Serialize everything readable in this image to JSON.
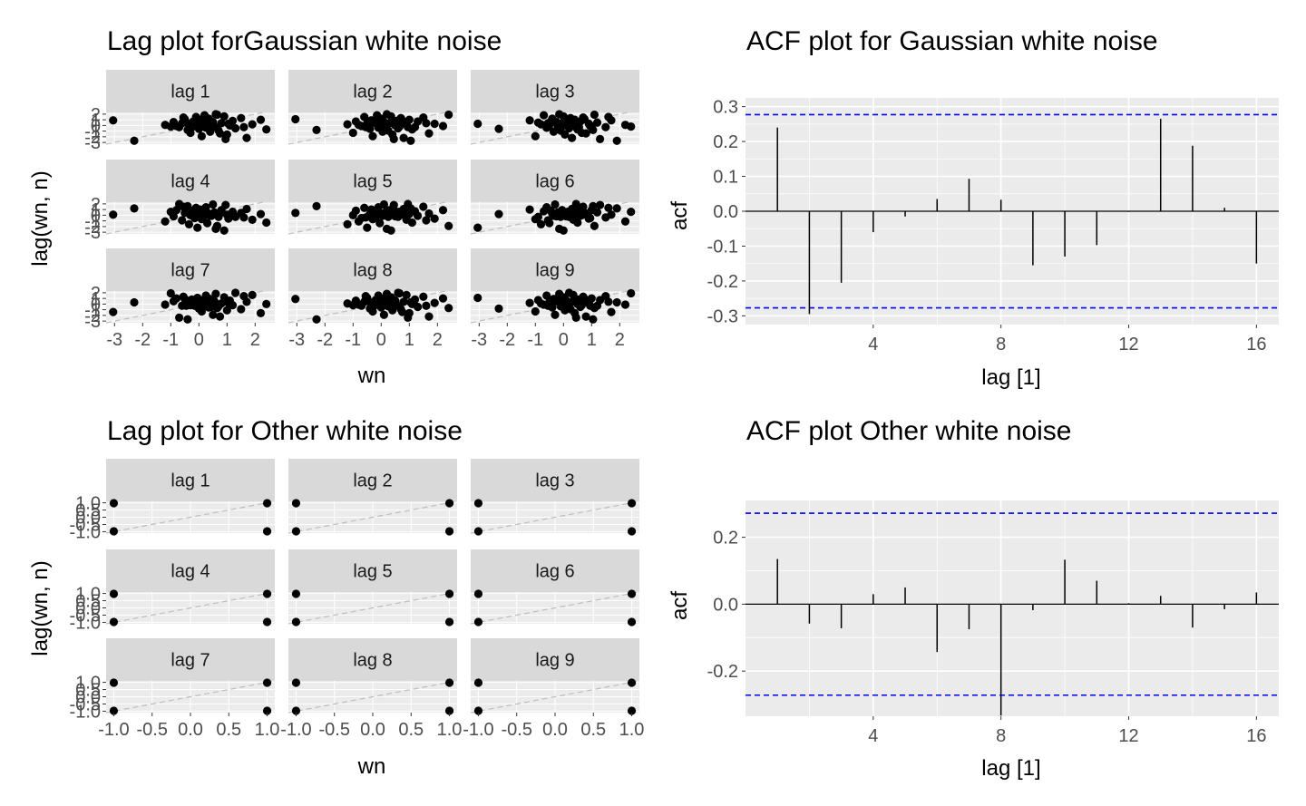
{
  "charts": {
    "lag_gaussian": {
      "title": "Lag plot forGaussian white noise",
      "xlabel": "wn",
      "ylabel": "lag(wn, n)",
      "xticks": [
        "-3",
        "-2",
        "-1",
        "0",
        "1",
        "2"
      ],
      "yticks": [
        "-3",
        "-2",
        "-1",
        "0",
        "1",
        "2"
      ],
      "panels": [
        "lag 1",
        "lag 2",
        "lag 3",
        "lag 4",
        "lag 5",
        "lag 6",
        "lag 7",
        "lag 8",
        "lag 9"
      ]
    },
    "acf_gaussian": {
      "title": "ACF plot for Gaussian white noise",
      "xlabel": "lag [1]",
      "ylabel": "acf",
      "xticks": [
        "4",
        "8",
        "12",
        "16"
      ],
      "yticks": [
        "-0.3",
        "-0.2",
        "-0.1",
        "0.0",
        "0.1",
        "0.2",
        "0.3"
      ]
    },
    "lag_other": {
      "title": "Lag plot for Other white noise",
      "xlabel": "wn",
      "ylabel": "lag(wn, n)",
      "xticks": [
        "-1.0",
        "-0.5",
        "0.0",
        "0.5",
        "1.0"
      ],
      "yticks": [
        "-1.0",
        "-0.5",
        "0.0",
        "0.5",
        "1.0"
      ],
      "panels": [
        "lag 1",
        "lag 2",
        "lag 3",
        "lag 4",
        "lag 5",
        "lag 6",
        "lag 7",
        "lag 8",
        "lag 9"
      ]
    },
    "acf_other": {
      "title": "ACF plot Other white noise",
      "xlabel": "lag [1]",
      "ylabel": "acf",
      "xticks": [
        "4",
        "8",
        "12",
        "16"
      ],
      "yticks": [
        "-0.2",
        "0.0",
        "0.2"
      ]
    }
  },
  "colors": {
    "panel_bg": "#ebebeb",
    "strip_bg": "#d9d9d9",
    "grid": "#ffffff",
    "points": "#000000",
    "ci_line": "#0000ff",
    "diag_line": "#bdbdbd"
  },
  "chart_data": [
    {
      "type": "scatter",
      "id": "lag_gaussian",
      "title": "Lag plot forGaussian white noise",
      "xlabel": "wn",
      "ylabel": "lag(wn, n)",
      "xlim": [
        -3.3,
        2.7
      ],
      "ylim": [
        -3.3,
        2.3
      ],
      "facets": [
        "lag 1",
        "lag 2",
        "lag 3",
        "lag 4",
        "lag 5",
        "lag 6",
        "lag 7",
        "lag 8",
        "lag 9"
      ],
      "series_x": [
        -3.05,
        -2.3,
        -1.2,
        -1.0,
        -0.9,
        -0.7,
        -0.6,
        -0.5,
        -0.4,
        -0.35,
        -0.3,
        -0.2,
        -0.15,
        -0.1,
        -0.05,
        0.0,
        0.05,
        0.1,
        0.15,
        0.2,
        0.25,
        0.3,
        0.35,
        0.4,
        0.5,
        0.55,
        0.6,
        0.7,
        0.8,
        0.9,
        1.0,
        1.1,
        1.2,
        1.3,
        1.5,
        1.7,
        1.9,
        2.2,
        2.4,
        -0.25,
        0.45,
        -0.55,
        0.75,
        1.05,
        -0.8,
        0.65,
        -0.45,
        0.95,
        1.6
      ],
      "series_y": [
        0.9,
        -2.7,
        0.1,
        -0.2,
        0.6,
        -0.3,
        0.4,
        1.1,
        -0.8,
        0.2,
        -1.3,
        0.7,
        -0.1,
        1.5,
        0.3,
        -0.6,
        0.9,
        -1.9,
        0.5,
        1.8,
        -0.4,
        0.1,
        1.2,
        -1.1,
        0.6,
        -0.2,
        2.1,
        -0.9,
        0.4,
        1.6,
        -1.6,
        0.0,
        0.8,
        -0.5,
        1.3,
        -2.2,
        0.2,
        1.0,
        -0.7,
        -0.3,
        0.7,
        1.4,
        -1.4,
        0.3,
        -0.1,
        1.9,
        0.5,
        -2.4,
        -0.3
      ],
      "reference_line": "y = x"
    },
    {
      "type": "bar",
      "id": "acf_gaussian",
      "title": "ACF plot for Gaussian white noise",
      "xlabel": "lag [1]",
      "ylabel": "acf",
      "x": [
        1,
        2,
        3,
        4,
        5,
        6,
        7,
        8,
        9,
        10,
        11,
        12,
        13,
        14,
        15,
        16
      ],
      "values": [
        0.24,
        -0.295,
        -0.205,
        -0.06,
        -0.015,
        0.035,
        0.093,
        0.033,
        -0.155,
        -0.13,
        -0.097,
        -0.002,
        0.265,
        0.188,
        0.01,
        -0.15
      ],
      "ci": [
        -0.277,
        0.277
      ],
      "xlim": [
        0.0,
        16.7
      ],
      "ylim": [
        -0.325,
        0.325
      ],
      "grid": true
    },
    {
      "type": "scatter",
      "id": "lag_other",
      "title": "Lag plot for Other white noise",
      "xlabel": "wn",
      "ylabel": "lag(wn, n)",
      "xlim": [
        -1.1,
        1.1
      ],
      "ylim": [
        -1.1,
        1.1
      ],
      "facets": [
        "lag 1",
        "lag 2",
        "lag 3",
        "lag 4",
        "lag 5",
        "lag 6",
        "lag 7",
        "lag 8",
        "lag 9"
      ],
      "series_x": [
        -1,
        -1,
        1,
        1
      ],
      "series_y": [
        1,
        -1,
        1,
        -1
      ],
      "reference_line": "y = x"
    },
    {
      "type": "bar",
      "id": "acf_other",
      "title": "ACF plot Other white noise",
      "xlabel": "lag [1]",
      "ylabel": "acf",
      "x": [
        1,
        2,
        3,
        4,
        5,
        6,
        7,
        8,
        9,
        10,
        11,
        12,
        13,
        14,
        15,
        16
      ],
      "values": [
        0.135,
        -0.058,
        -0.072,
        0.03,
        0.05,
        -0.143,
        -0.075,
        -0.333,
        -0.018,
        0.133,
        0.07,
        0.003,
        0.025,
        -0.07,
        -0.015,
        0.035
      ],
      "ci": [
        -0.272,
        0.272
      ],
      "xlim": [
        0.0,
        16.7
      ],
      "ylim": [
        -0.335,
        0.31
      ],
      "grid": true
    }
  ]
}
